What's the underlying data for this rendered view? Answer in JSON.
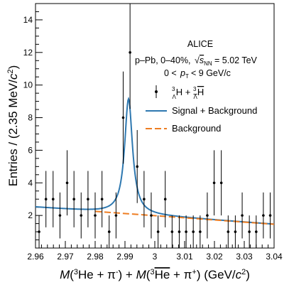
{
  "chart_data": {
    "type": "scatter",
    "xlabel": "M(³He + π⁻) + M(³He̅ + π⁺)  (GeV/c²)",
    "ylabel": "Entries / (2.35 MeV/c²)",
    "xlim": [
      2.96,
      3.04
    ],
    "ylim": [
      0,
      15
    ],
    "x_ticks": [
      2.96,
      2.97,
      2.98,
      2.99,
      3.0,
      3.01,
      3.02,
      3.03,
      3.04
    ],
    "x_tick_labels": [
      "2.96",
      "2.97",
      "2.98",
      "2.99",
      "3",
      "3.01",
      "3.02",
      "3.03",
      "3.04"
    ],
    "y_ticks": [
      2,
      4,
      6,
      8,
      10,
      12,
      14
    ],
    "y_tick_labels": [
      "2",
      "4",
      "6",
      "8",
      "10",
      "12",
      "14"
    ],
    "annotations": {
      "experiment": "ALICE",
      "system_prefix": "p–Pb, 0–40%, ",
      "sqrts_value": " = 5.02 TeV",
      "pt_range_prefix": "0 < ",
      "pt_range_suffix": " < 9 GeV/c"
    },
    "legend": {
      "position": "top-right",
      "entries": [
        "³ΛH + ³Λ̅H̅",
        "Signal + Background",
        "Background"
      ]
    },
    "series": [
      {
        "name": "³ΛH + ³Λ̅H̅",
        "style": "points-with-errors",
        "color": "#000000",
        "x": [
          2.9612,
          2.9635,
          2.9659,
          2.9682,
          2.9706,
          2.9729,
          2.9753,
          2.9776,
          2.98,
          2.9823,
          2.9847,
          2.987,
          2.9894,
          2.9917,
          2.9941,
          2.9964,
          2.9988,
          3.0011,
          3.0035,
          3.0058,
          3.0082,
          3.0105,
          3.0129,
          3.0152,
          3.0176,
          3.0199,
          3.0223,
          3.0246,
          3.027,
          3.0293,
          3.0317,
          3.034,
          3.0364,
          3.0387
        ],
        "y": [
          1,
          3,
          3,
          2,
          4,
          3,
          2,
          3,
          2,
          3,
          1,
          2,
          8,
          12,
          5,
          3,
          2,
          1,
          3,
          1,
          1,
          1,
          1,
          1,
          2,
          4,
          4,
          1,
          1,
          2,
          1,
          1,
          2,
          2
        ],
        "yerr": [
          1.0,
          1.73,
          1.73,
          1.41,
          2.0,
          1.73,
          1.41,
          1.73,
          1.41,
          1.73,
          1.0,
          1.41,
          2.83,
          3.46,
          2.24,
          1.73,
          1.41,
          1.0,
          1.73,
          1.0,
          1.0,
          1.0,
          1.0,
          1.0,
          1.41,
          2.0,
          2.0,
          1.0,
          1.0,
          1.41,
          1.0,
          1.0,
          1.41,
          1.41
        ]
      },
      {
        "name": "Signal + Background",
        "style": "line",
        "color": "#2e78b0",
        "model": {
          "peak_x": 2.9912,
          "peak_height": 7.05,
          "width": 0.0016
        }
      },
      {
        "name": "Background",
        "style": "dashed-line",
        "color": "#ee7d22",
        "x": [
          2.98,
          3.04
        ],
        "y": [
          2.25,
          1.46
        ]
      }
    ]
  }
}
